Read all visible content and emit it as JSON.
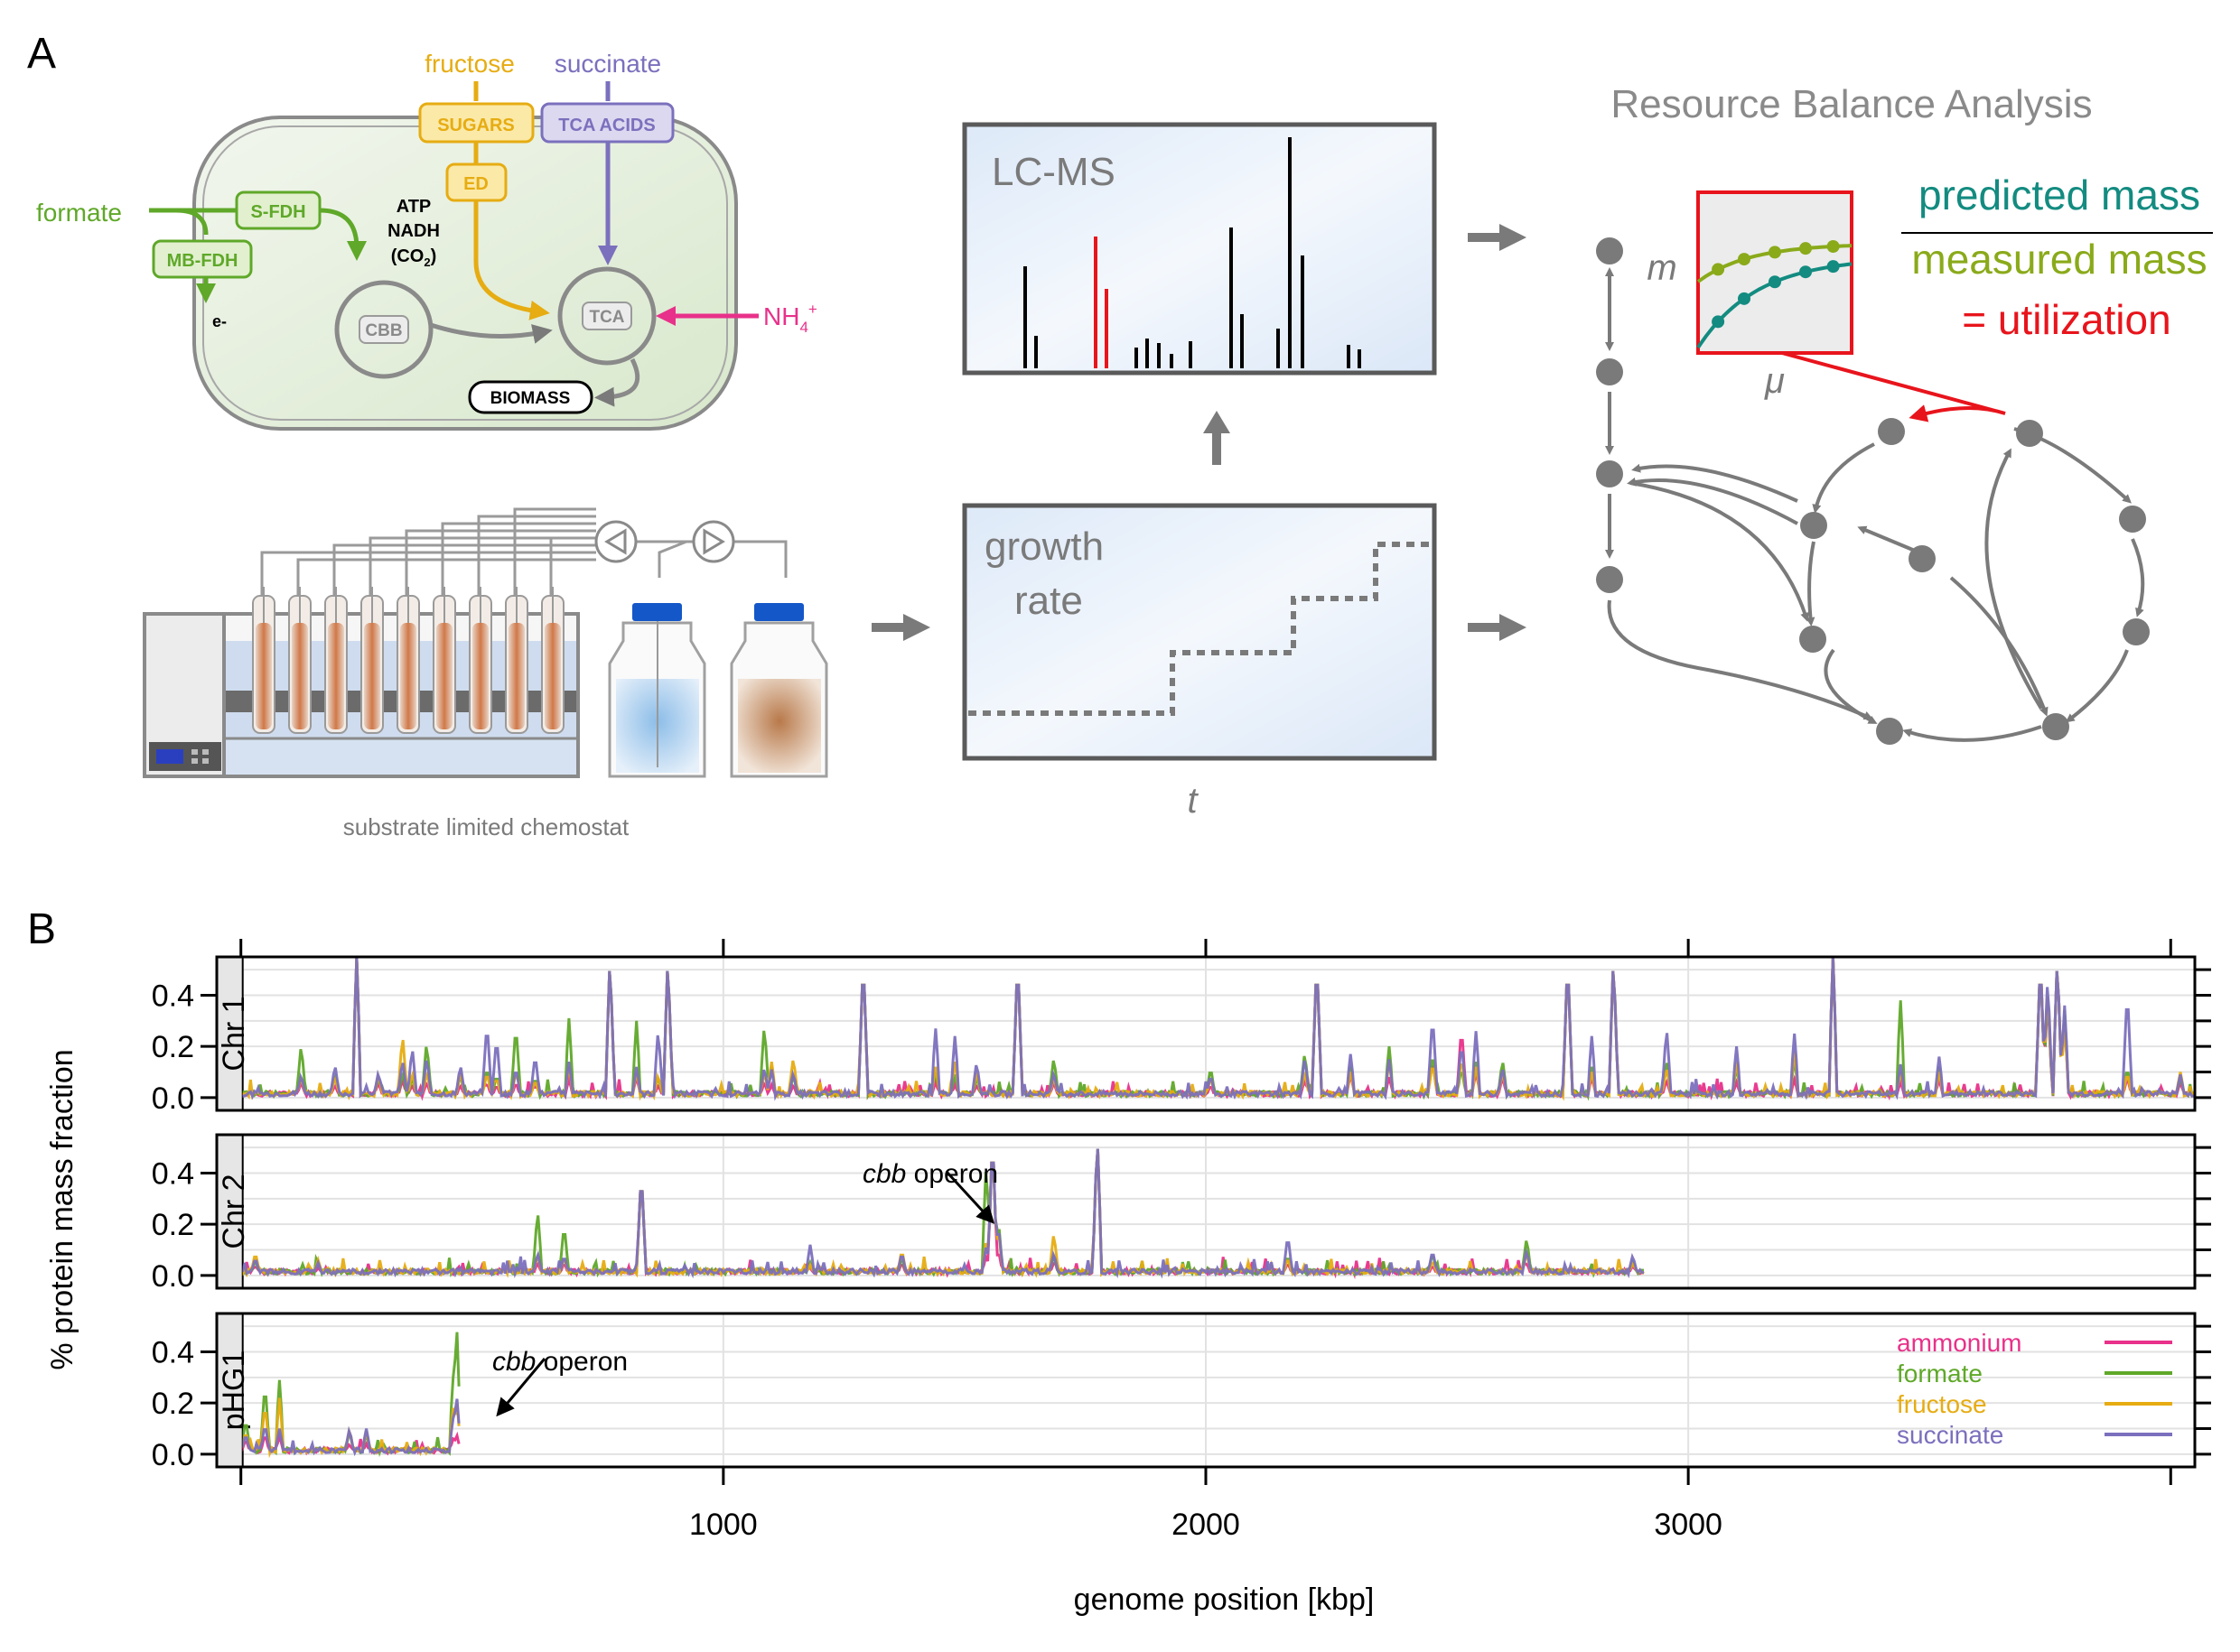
{
  "panel_a": {
    "label": "A",
    "cell": {
      "fructose": "fructose",
      "succinate": "succinate",
      "sugars": "SUGARS",
      "tca_acids": "TCA ACIDS",
      "formate": "formate",
      "s_fdh": "S-FDH",
      "mb_fdh": "MB-FDH",
      "ed": "ED",
      "atp": "ATP",
      "nadh": "NADH",
      "co2": "(CO",
      "co2_sub": "2",
      "co2_close": ")",
      "electron": "e-",
      "cbb": "CBB",
      "tca": "TCA",
      "nh4": "NH",
      "nh4_sub": "4",
      "nh4_sup": "+",
      "biomass": "BIOMASS"
    },
    "chemostat_caption": "substrate limited chemostat",
    "lcms_title": "LC-MS",
    "growth_rate_line1": "growth",
    "growth_rate_line2": "rate",
    "time_axis": "t",
    "rba": {
      "title": "Resource Balance Analysis",
      "m_label": "m",
      "mu_label": "μ",
      "predicted": "predicted mass",
      "measured": "measured mass",
      "utilization": "= utilization"
    },
    "colors": {
      "formate": "#5fa829",
      "fructose": "#e6ac12",
      "succinate": "#7b70bd",
      "ammonium": "#e8318a",
      "predicted": "#138b80",
      "measured": "#8aaa1a",
      "utilization": "#e8141c"
    }
  },
  "panel_b": {
    "label": "B",
    "chart_data": {
      "type": "line",
      "xlabel": "genome position [kbp]",
      "ylabel": "% protein mass fraction",
      "xlim": [
        -50,
        4050
      ],
      "ylim": [
        -0.05,
        0.55
      ],
      "xticks": [
        1000,
        2000,
        3000
      ],
      "yticks": [
        "0.0",
        "0.2",
        "0.4"
      ],
      "grid": true,
      "legend_position": "bottom-right of pHG1 strip",
      "series": [
        {
          "name": "ammonium",
          "color": "#e8318a"
        },
        {
          "name": "formate",
          "color": "#5fa829"
        },
        {
          "name": "fructose",
          "color": "#e6ac12"
        },
        {
          "name": "succinate",
          "color": "#7b70bd"
        }
      ],
      "panels": [
        {
          "strip": "Chr 1",
          "length_kbp": 4050,
          "peaks": [
            {
              "x": 120,
              "ammonium": 0.03,
              "formate": 0.05,
              "fructose": 0.04,
              "succinate": 0.04
            },
            {
              "x": 125,
              "ammonium": 0.06,
              "formate": 0.21,
              "fructose": 0.08,
              "succinate": 0.09
            },
            {
              "x": 195,
              "ammonium": 0.05,
              "formate": 0.09,
              "fructose": 0.08,
              "succinate": 0.13
            },
            {
              "x": 240,
              "ammonium": 0.55,
              "formate": 0.55,
              "fructose": 0.55,
              "succinate": 0.55
            },
            {
              "x": 285,
              "ammonium": 0.06,
              "formate": 0.08,
              "fructose": 0.09,
              "succinate": 0.1
            },
            {
              "x": 335,
              "ammonium": 0.07,
              "formate": 0.1,
              "fructose": 0.25,
              "succinate": 0.15
            },
            {
              "x": 355,
              "ammonium": 0.05,
              "formate": 0.08,
              "fructose": 0.1,
              "succinate": 0.2
            },
            {
              "x": 385,
              "ammonium": 0.06,
              "formate": 0.22,
              "fructose": 0.1,
              "succinate": 0.16
            },
            {
              "x": 455,
              "ammonium": 0.05,
              "formate": 0.09,
              "fructose": 0.1,
              "succinate": 0.13
            },
            {
              "x": 510,
              "ammonium": 0.06,
              "formate": 0.12,
              "fructose": 0.1,
              "succinate": 0.3
            },
            {
              "x": 530,
              "ammonium": 0.05,
              "formate": 0.09,
              "fructose": 0.08,
              "succinate": 0.24
            },
            {
              "x": 570,
              "ammonium": 0.06,
              "formate": 0.29,
              "fructose": 0.1,
              "succinate": 0.12
            },
            {
              "x": 610,
              "ammonium": 0.05,
              "formate": 0.08,
              "fructose": 0.07,
              "succinate": 0.17
            },
            {
              "x": 680,
              "ammonium": 0.07,
              "formate": 0.31,
              "fructose": 0.12,
              "succinate": 0.14
            },
            {
              "x": 765,
              "ammonium": 0.55,
              "formate": 0.55,
              "fructose": 0.55,
              "succinate": 0.55
            },
            {
              "x": 820,
              "ammonium": 0.08,
              "formate": 0.3,
              "fructose": 0.1,
              "succinate": 0.12
            },
            {
              "x": 865,
              "ammonium": 0.05,
              "formate": 0.08,
              "fructose": 0.09,
              "succinate": 0.27
            },
            {
              "x": 885,
              "ammonium": 0.55,
              "formate": 0.55,
              "fructose": 0.55,
              "succinate": 0.55
            },
            {
              "x": 1085,
              "ammonium": 0.06,
              "formate": 0.29,
              "fructose": 0.1,
              "succinate": 0.12
            },
            {
              "x": 1100,
              "ammonium": 0.05,
              "formate": 0.12,
              "fructose": 0.14,
              "succinate": 0.11
            },
            {
              "x": 1145,
              "ammonium": 0.05,
              "formate": 0.09,
              "fructose": 0.16,
              "succinate": 0.1
            },
            {
              "x": 1290,
              "ammonium": 0.55,
              "formate": 0.55,
              "fructose": 0.55,
              "succinate": 0.55
            },
            {
              "x": 1440,
              "ammonium": 0.06,
              "formate": 0.1,
              "fructose": 0.12,
              "succinate": 0.27
            },
            {
              "x": 1480,
              "ammonium": 0.05,
              "formate": 0.09,
              "fructose": 0.14,
              "succinate": 0.24
            },
            {
              "x": 1525,
              "ammonium": 0.05,
              "formate": 0.08,
              "fructose": 0.1,
              "succinate": 0.14
            },
            {
              "x": 1610,
              "ammonium": 0.55,
              "formate": 0.55,
              "fructose": 0.55,
              "succinate": 0.55
            },
            {
              "x": 1685,
              "ammonium": 0.06,
              "formate": 0.16,
              "fructose": 0.08,
              "succinate": 0.1
            },
            {
              "x": 2010,
              "ammonium": 0.05,
              "formate": 0.12,
              "fructose": 0.08,
              "succinate": 0.09
            },
            {
              "x": 2205,
              "ammonium": 0.07,
              "formate": 0.18,
              "fructose": 0.1,
              "succinate": 0.16
            },
            {
              "x": 2230,
              "ammonium": 0.55,
              "formate": 0.55,
              "fructose": 0.55,
              "succinate": 0.55
            },
            {
              "x": 2300,
              "ammonium": 0.09,
              "formate": 0.12,
              "fructose": 0.1,
              "succinate": 0.17
            },
            {
              "x": 2380,
              "ammonium": 0.08,
              "formate": 0.2,
              "fructose": 0.14,
              "succinate": 0.15
            },
            {
              "x": 2470,
              "ammonium": 0.15,
              "formate": 0.18,
              "fructose": 0.14,
              "succinate": 0.33
            },
            {
              "x": 2530,
              "ammonium": 0.28,
              "formate": 0.12,
              "fructose": 0.16,
              "succinate": 0.22
            },
            {
              "x": 2560,
              "ammonium": 0.1,
              "formate": 0.14,
              "fructose": 0.12,
              "succinate": 0.26
            },
            {
              "x": 2615,
              "ammonium": 0.08,
              "formate": 0.15,
              "fructose": 0.1,
              "succinate": 0.12
            },
            {
              "x": 2750,
              "ammonium": 0.55,
              "formate": 0.55,
              "fructose": 0.55,
              "succinate": 0.55
            },
            {
              "x": 2800,
              "ammonium": 0.08,
              "formate": 0.12,
              "fructose": 0.1,
              "succinate": 0.24
            },
            {
              "x": 2845,
              "ammonium": 0.55,
              "formate": 0.55,
              "fructose": 0.55,
              "succinate": 0.55
            },
            {
              "x": 2955,
              "ammonium": 0.07,
              "formate": 0.15,
              "fructose": 0.12,
              "succinate": 0.28
            },
            {
              "x": 3100,
              "ammonium": 0.06,
              "formate": 0.12,
              "fructose": 0.14,
              "succinate": 0.2
            },
            {
              "x": 3220,
              "ammonium": 0.07,
              "formate": 0.15,
              "fructose": 0.18,
              "succinate": 0.25
            },
            {
              "x": 3300,
              "ammonium": 0.55,
              "formate": 0.55,
              "fructose": 0.55,
              "succinate": 0.55
            },
            {
              "x": 3440,
              "ammonium": 0.06,
              "formate": 0.38,
              "fructose": 0.1,
              "succinate": 0.13
            },
            {
              "x": 3520,
              "ammonium": 0.07,
              "formate": 0.12,
              "fructose": 0.1,
              "succinate": 0.16
            },
            {
              "x": 3730,
              "ammonium": 0.55,
              "formate": 0.55,
              "fructose": 0.55,
              "succinate": 0.55
            },
            {
              "x": 3745,
              "ammonium": 0.4,
              "formate": 0.42,
              "fructose": 0.44,
              "succinate": 0.48
            },
            {
              "x": 3765,
              "ammonium": 0.55,
              "formate": 0.55,
              "fructose": 0.55,
              "succinate": 0.55
            },
            {
              "x": 3780,
              "ammonium": 0.3,
              "formate": 0.34,
              "fructose": 0.28,
              "succinate": 0.36
            },
            {
              "x": 3910,
              "ammonium": 0.08,
              "formate": 0.12,
              "fructose": 0.1,
              "succinate": 0.43
            },
            {
              "x": 4020,
              "ammonium": 0.06,
              "formate": 0.08,
              "fructose": 0.1,
              "succinate": 0.09
            }
          ]
        },
        {
          "strip": "Chr 2",
          "length_kbp": 2910,
          "annotation": {
            "italic": "cbb",
            "text": " operon",
            "x": 1560
          },
          "peaks": [
            {
              "x": 30,
              "ammonium": 0.04,
              "formate": 0.06,
              "fructose": 0.09,
              "succinate": 0.07
            },
            {
              "x": 160,
              "ammonium": 0.03,
              "formate": 0.05,
              "fructose": 0.06,
              "succinate": 0.05
            },
            {
              "x": 615,
              "ammonium": 0.05,
              "formate": 0.26,
              "fructose": 0.08,
              "succinate": 0.09
            },
            {
              "x": 670,
              "ammonium": 0.05,
              "formate": 0.2,
              "fructose": 0.07,
              "succinate": 0.08
            },
            {
              "x": 830,
              "ammonium": 0.41,
              "formate": 0.41,
              "fructose": 0.41,
              "succinate": 0.41
            },
            {
              "x": 1180,
              "ammonium": 0.03,
              "formate": 0.05,
              "fructose": 0.04,
              "succinate": 0.12
            },
            {
              "x": 1370,
              "ammonium": 0.05,
              "formate": 0.07,
              "fructose": 0.1,
              "succinate": 0.09
            },
            {
              "x": 1545,
              "ammonium": 0.08,
              "formate": 0.45,
              "fructose": 0.14,
              "succinate": 0.12
            },
            {
              "x": 1558,
              "ammonium": 0.55,
              "formate": 0.55,
              "fructose": 0.55,
              "succinate": 0.55
            },
            {
              "x": 1570,
              "ammonium": 0.1,
              "formate": 0.22,
              "fructose": 0.18,
              "succinate": 0.2
            },
            {
              "x": 1685,
              "ammonium": 0.05,
              "formate": 0.08,
              "fructose": 0.17,
              "succinate": 0.09
            },
            {
              "x": 1775,
              "ammonium": 0.55,
              "formate": 0.55,
              "fructose": 0.55,
              "succinate": 0.55
            },
            {
              "x": 2170,
              "ammonium": 0.05,
              "formate": 0.08,
              "fructose": 0.07,
              "succinate": 0.16
            },
            {
              "x": 2470,
              "ammonium": 0.04,
              "formate": 0.09,
              "fructose": 0.06,
              "succinate": 0.1
            },
            {
              "x": 2665,
              "ammonium": 0.05,
              "formate": 0.15,
              "fructose": 0.09,
              "succinate": 0.1
            },
            {
              "x": 2885,
              "ammonium": 0.04,
              "formate": 0.06,
              "fructose": 0.05,
              "succinate": 0.08
            }
          ]
        },
        {
          "strip": "pHG1",
          "length_kbp": 452,
          "annotation": {
            "italic": "cbb",
            "text": " operon",
            "x": 452
          },
          "peaks": [
            {
              "x": 10,
              "ammonium": 0.06,
              "formate": 0.14,
              "fructose": 0.09,
              "succinate": 0.08
            },
            {
              "x": 50,
              "ammonium": 0.08,
              "formate": 0.28,
              "fructose": 0.2,
              "succinate": 0.12
            },
            {
              "x": 80,
              "ammonium": 0.07,
              "formate": 0.29,
              "fructose": 0.22,
              "succinate": 0.1
            },
            {
              "x": 225,
              "ammonium": 0.04,
              "formate": 0.09,
              "fructose": 0.1,
              "succinate": 0.1
            },
            {
              "x": 260,
              "ammonium": 0.04,
              "formate": 0.08,
              "fructose": 0.09,
              "succinate": 0.1
            },
            {
              "x": 440,
              "ammonium": 0.06,
              "formate": 0.3,
              "fructose": 0.18,
              "succinate": 0.14
            },
            {
              "x": 447,
              "ammonium": 0.08,
              "formate": 0.53,
              "fructose": 0.22,
              "succinate": 0.24
            }
          ]
        }
      ]
    }
  }
}
